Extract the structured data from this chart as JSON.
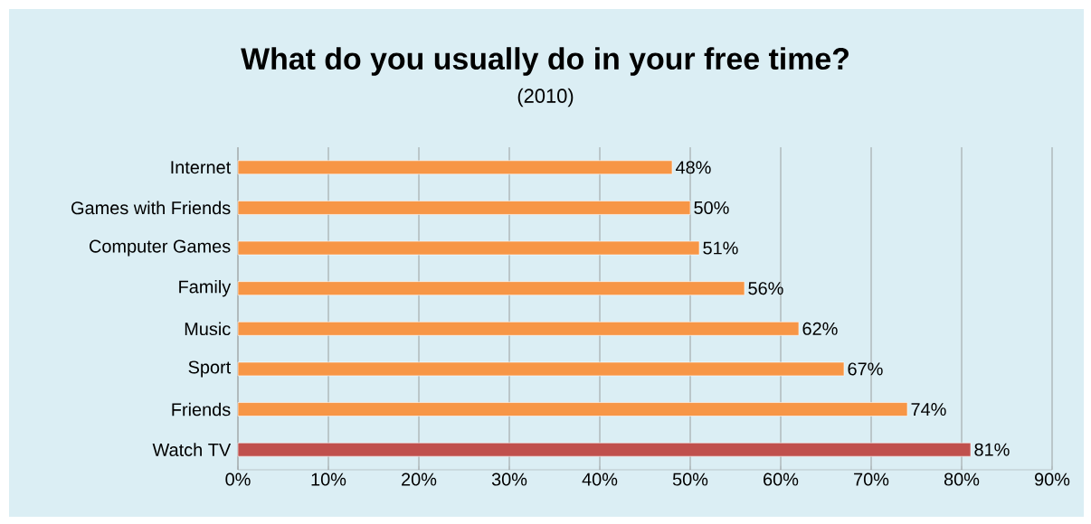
{
  "chart_data": {
    "type": "bar",
    "orientation": "horizontal",
    "title": "What do you usually do in your free time?",
    "subtitle": "(2010)",
    "categories": [
      "Internet",
      "Games with Friends",
      "Computer Games",
      "Family",
      "Music",
      "Sport",
      "Friends",
      "Watch TV"
    ],
    "values": [
      48,
      50,
      51,
      56,
      62,
      67,
      74,
      81
    ],
    "colors": [
      "#f79646",
      "#f79646",
      "#f79646",
      "#f79646",
      "#f79646",
      "#f79646",
      "#f79646",
      "#c0504d"
    ],
    "value_labels": [
      "48%",
      "50%",
      "51%",
      "56%",
      "62%",
      "67%",
      "74%",
      "81%"
    ],
    "xlim": [
      0,
      90
    ],
    "xticks": [
      {
        "value": 0,
        "label": "0%"
      },
      {
        "value": 10,
        "label": "10%"
      },
      {
        "value": 20,
        "label": "20%"
      },
      {
        "value": 30,
        "label": "30%"
      },
      {
        "value": 40,
        "label": "40%"
      },
      {
        "value": 50,
        "label": "50%"
      },
      {
        "value": 60,
        "label": "60%"
      },
      {
        "value": 70,
        "label": "70%"
      },
      {
        "value": 80,
        "label": "80%"
      },
      {
        "value": 90,
        "label": "90%"
      }
    ],
    "grid": "x"
  }
}
